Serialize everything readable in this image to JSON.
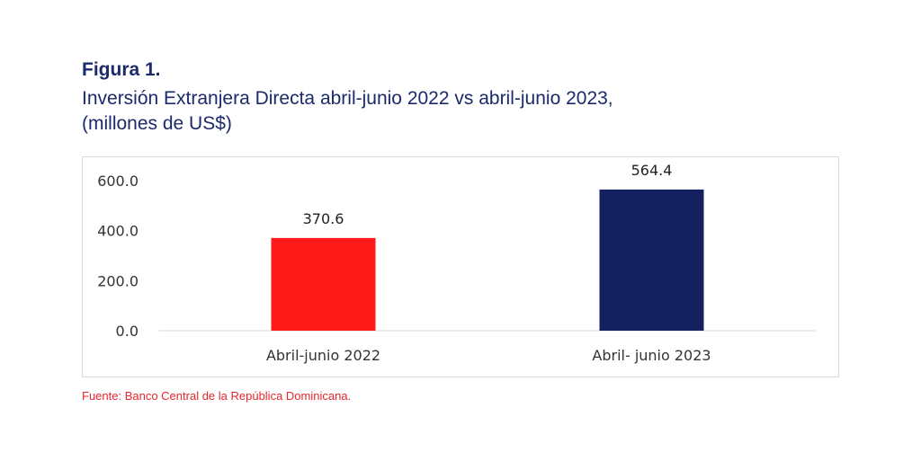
{
  "figure": {
    "label": "Figura 1.",
    "title_line1": "Inversión Extranjera Directa abril-junio 2022 vs abril-junio 2023,",
    "title_line2": "(millones de US$)",
    "source": "Fuente: Banco Central de la República Dominicana."
  },
  "chart_data": {
    "type": "bar",
    "categories": [
      "Abril-junio 2022",
      "Abril- junio 2023"
    ],
    "values": [
      370.6,
      564.4
    ],
    "value_labels": [
      "370.6",
      "564.4"
    ],
    "bar_colors": [
      "#ff1a1a",
      "#152060"
    ],
    "ylim": [
      0,
      600
    ],
    "yticks": [
      0,
      200,
      400,
      600
    ],
    "ytick_labels": [
      "0.0",
      "200.0",
      "400.0",
      "600.0"
    ],
    "grid": false,
    "legend": "none"
  }
}
